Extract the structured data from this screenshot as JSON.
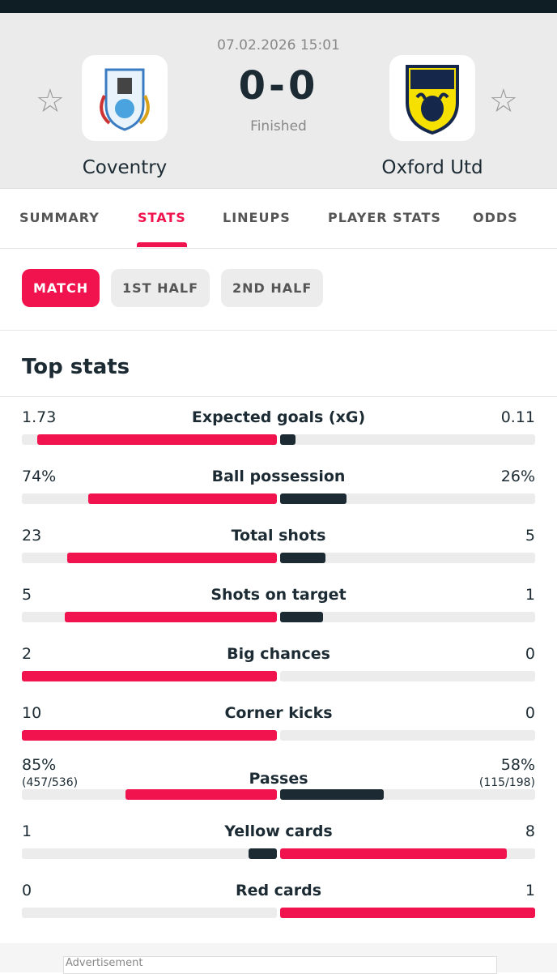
{
  "header": {
    "datetime": "07.02.2026 15:01",
    "home_team": "Coventry",
    "away_team": "Oxford Utd",
    "score": {
      "home": 0,
      "separator": "-",
      "away": 0
    },
    "status": "Finished"
  },
  "tabs": {
    "items": [
      "SUMMARY",
      "STATS",
      "LINEUPS",
      "PLAYER STATS",
      "ODDS"
    ],
    "active": 1
  },
  "filters": {
    "items": [
      "MATCH",
      "1ST HALF",
      "2ND HALF"
    ],
    "active": 0
  },
  "stats": {
    "title": "Top stats",
    "home_color": "#f0134d",
    "away_color": "#1c2b33",
    "track_color": "#ececec",
    "rows": [
      {
        "label": "Expected goals (xG)",
        "home": 1.73,
        "away": 0.11
      },
      {
        "label": "Ball possession",
        "home": 74,
        "home_label": "74%",
        "away": 26,
        "away_label": "26%"
      },
      {
        "label": "Total shots",
        "home": 23,
        "away": 5
      },
      {
        "label": "Shots on target",
        "home": 5,
        "away": 1
      },
      {
        "label": "Big chances",
        "home": 2,
        "away": 0
      },
      {
        "label": "Corner kicks",
        "home": 10,
        "away": 0
      },
      {
        "label": "Passes",
        "home": 85,
        "home_label": "85%",
        "home_detail": "(457/536)",
        "away": 58,
        "away_label": "58%",
        "away_detail": "(115/198)"
      },
      {
        "label": "Yellow cards",
        "home": 1,
        "away": 8
      },
      {
        "label": "Red cards",
        "home": 0,
        "away": 1
      }
    ]
  },
  "footer": {
    "ad_label": "Advertisement"
  }
}
